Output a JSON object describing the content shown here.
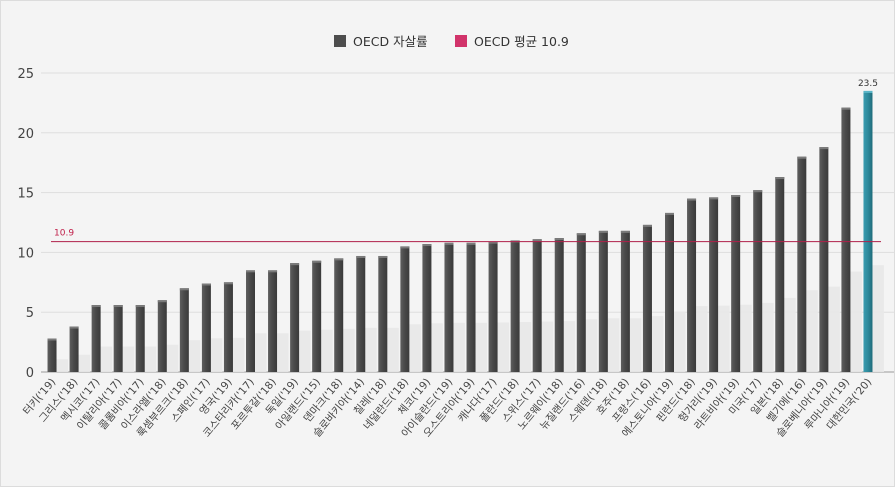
{
  "chart_data": {
    "type": "bar",
    "legend": [
      {
        "name": "OECD 자살률",
        "color": "#4d4d4d"
      },
      {
        "name": "OECD 평균 10.9",
        "color": "#d1336a"
      }
    ],
    "series": [
      {
        "name": "OECD 자살률",
        "values": [
          2.8,
          3.8,
          5.6,
          5.6,
          5.6,
          6.0,
          7.0,
          7.4,
          7.5,
          8.5,
          8.5,
          9.1,
          9.3,
          9.5,
          9.7,
          9.7,
          10.5,
          10.7,
          10.8,
          10.8,
          10.9,
          11.0,
          11.1,
          11.2,
          11.6,
          11.8,
          11.8,
          12.3,
          13.3,
          14.5,
          14.6,
          14.8,
          15.2,
          16.3,
          18.0,
          18.8,
          22.1,
          23.5
        ]
      }
    ],
    "categories": [
      "터키('19)",
      "그리스('18)",
      "멕시코('17)",
      "이탈리아('17)",
      "콜롬비아('17)",
      "이스라엘('18)",
      "룩셈부르크('18)",
      "스페인('17)",
      "영국('19)",
      "코스타리카('17)",
      "포르투갈('18)",
      "독일('19)",
      "아일랜드('15)",
      "덴마크('18)",
      "슬로바키아('14)",
      "칠레('18)",
      "네덜란드('18)",
      "체코('19)",
      "아이슬란드('19)",
      "오스트리아('19)",
      "캐나다('17)",
      "폴란드('18)",
      "스위스('17)",
      "노르웨이('18)",
      "뉴질랜드('16)",
      "스웨덴('18)",
      "호주('18)",
      "프랑스('16)",
      "에스토니아('19)",
      "핀란드('18)",
      "헝가리('19)",
      "라트비아('19)",
      "미국('17)",
      "일본('18)",
      "벨기에('16)",
      "슬로베니아('19)",
      "루마니아('19)",
      "대한민국('20)"
    ],
    "average": {
      "value": 10.9,
      "label": "10.9"
    },
    "highlight": {
      "index": 37,
      "color": "#2e8a9c",
      "label": "23.5"
    },
    "bar_color": "#4d4d4d",
    "ylim": [
      0,
      25
    ],
    "yticks": [
      "0",
      "5",
      "10",
      "15",
      "20",
      "25"
    ],
    "xlabel": "",
    "ylabel": "",
    "grid": true,
    "legend_position": "top-center"
  }
}
